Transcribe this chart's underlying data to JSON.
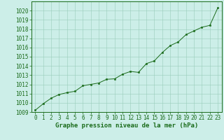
{
  "x_values": [
    0,
    1,
    2,
    3,
    4,
    5,
    6,
    7,
    8,
    9,
    10,
    11,
    12,
    13,
    14,
    15,
    16,
    17,
    18,
    19,
    20,
    21,
    22,
    23
  ],
  "y_values": [
    1009.2,
    1009.9,
    1010.5,
    1010.9,
    1011.1,
    1011.25,
    1011.85,
    1012.0,
    1012.15,
    1012.55,
    1012.6,
    1013.1,
    1013.4,
    1013.3,
    1014.25,
    1014.55,
    1015.45,
    1016.2,
    1016.6,
    1017.4,
    1017.8,
    1018.2,
    1018.4,
    1020.3
  ],
  "line_color": "#1a6b1a",
  "marker_color": "#1a6b1a",
  "bg_color": "#cceee8",
  "grid_color": "#99ccbb",
  "border_color": "#1a6b1a",
  "xlabel": "Graphe pression niveau de la mer (hPa)",
  "ylim": [
    1009,
    1021
  ],
  "xlim": [
    -0.5,
    23.5
  ],
  "yticks": [
    1009,
    1010,
    1011,
    1012,
    1013,
    1014,
    1015,
    1016,
    1017,
    1018,
    1019,
    1020
  ],
  "xticks": [
    0,
    1,
    2,
    3,
    4,
    5,
    6,
    7,
    8,
    9,
    10,
    11,
    12,
    13,
    14,
    15,
    16,
    17,
    18,
    19,
    20,
    21,
    22,
    23
  ],
  "tick_fontsize": 5.5,
  "label_fontsize": 6.5
}
